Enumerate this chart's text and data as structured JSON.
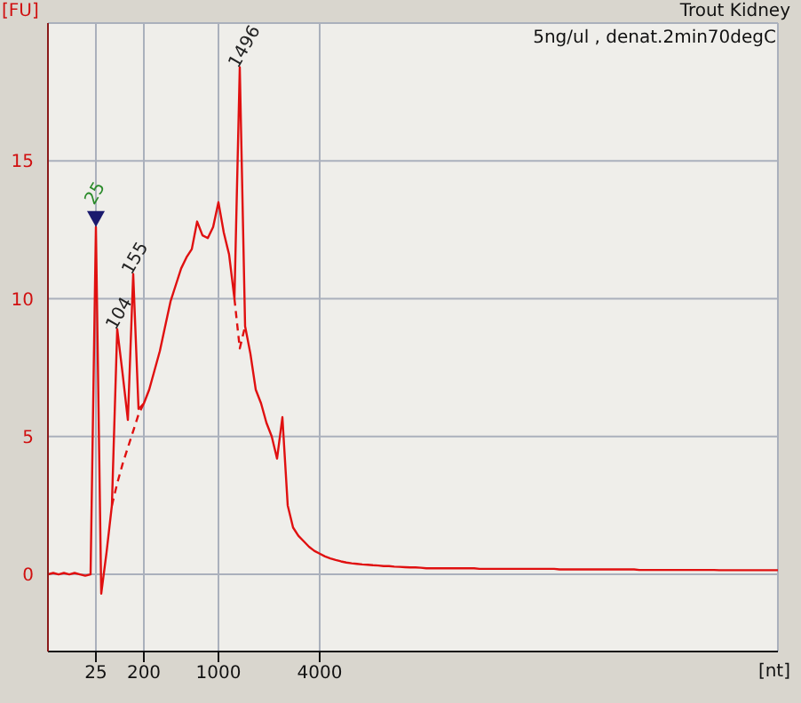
{
  "chart_data": {
    "type": "line",
    "title": "Trout Kidney",
    "subtitle": "5ng/ul , denat.2min70degC",
    "xlabel": "[nt]",
    "ylabel": "[FU]",
    "categories": [
      null,
      null,
      null,
      null,
      null,
      null,
      null,
      null,
      null,
      "25",
      null,
      null,
      null,
      null,
      null,
      null,
      null,
      null,
      "200",
      null,
      null,
      null,
      null,
      null,
      null,
      null,
      null,
      null,
      null,
      null,
      null,
      null,
      "1000",
      null,
      null,
      null,
      null,
      null,
      null,
      null,
      null,
      null,
      null,
      null,
      null,
      null,
      null,
      null,
      null,
      null,
      null,
      "4000",
      null,
      null,
      null,
      null,
      null,
      null,
      null,
      null,
      null,
      null,
      null,
      null,
      null,
      null,
      null,
      null,
      null,
      null,
      null,
      null,
      null,
      null,
      null,
      null,
      null,
      null,
      null,
      null,
      null,
      null,
      null,
      null,
      null,
      null,
      null,
      null,
      null,
      null,
      null,
      null,
      null,
      null,
      null,
      null,
      null,
      null,
      null,
      null,
      null,
      null,
      null,
      null,
      null,
      null,
      null,
      null,
      null,
      null,
      null,
      null,
      null,
      null,
      null,
      null,
      null,
      null,
      null,
      null,
      null,
      null,
      null,
      null,
      null,
      null,
      null,
      null,
      null,
      null,
      null,
      null,
      null,
      null,
      null,
      null,
      null,
      null
    ],
    "series": [
      {
        "color": "#e01010",
        "line_style": "solid",
        "values": [
          0,
          0.05,
          0,
          0.05,
          0,
          0.05,
          0,
          -0.05,
          0,
          12.6,
          -0.7,
          0.8,
          2.5,
          8.9,
          7.3,
          5.6,
          10.9,
          6.0,
          6.2,
          6.7,
          7.4,
          8.1,
          9.0,
          9.9,
          10.5,
          11.1,
          11.5,
          11.8,
          12.8,
          12.3,
          12.2,
          12.6,
          13.5,
          12.4,
          11.6,
          10.0,
          18.4,
          9.0,
          8.0,
          6.7,
          6.2,
          5.5,
          5.0,
          4.2,
          5.7,
          2.5,
          1.7,
          1.4,
          1.2,
          1.0,
          0.85,
          0.75,
          0.65,
          0.58,
          0.52,
          0.47,
          0.43,
          0.4,
          0.38,
          0.36,
          0.35,
          0.33,
          0.32,
          0.3,
          0.3,
          0.28,
          0.27,
          0.26,
          0.25,
          0.25,
          0.24,
          0.22,
          0.22,
          0.22,
          0.22,
          0.22,
          0.22,
          0.22,
          0.22,
          0.22,
          0.22,
          0.2,
          0.2,
          0.2,
          0.2,
          0.2,
          0.2,
          0.2,
          0.2,
          0.2,
          0.2,
          0.2,
          0.2,
          0.2,
          0.2,
          0.2,
          0.18,
          0.18,
          0.18,
          0.18,
          0.18,
          0.18,
          0.18,
          0.18,
          0.18,
          0.18,
          0.18,
          0.18,
          0.18,
          0.18,
          0.18,
          0.16,
          0.16,
          0.16,
          0.16,
          0.16,
          0.16,
          0.16,
          0.16,
          0.16,
          0.16,
          0.16,
          0.16,
          0.16,
          0.16,
          0.16,
          0.15,
          0.15,
          0.15,
          0.15,
          0.15,
          0.15,
          0.15,
          0.15,
          0.15,
          0.15,
          0.15,
          0.15
        ]
      },
      {
        "color": "#e01010",
        "line_style": "dashed",
        "values": [
          null,
          null,
          null,
          null,
          null,
          null,
          null,
          null,
          null,
          null,
          null,
          null,
          2.5,
          3.3,
          4.0,
          4.6,
          5.2,
          5.8,
          6.2,
          null,
          null,
          null,
          null,
          null,
          null,
          null,
          null,
          null,
          null,
          null,
          null,
          null,
          null,
          null,
          null,
          10.0,
          8.2,
          9.0,
          null,
          null,
          null,
          null,
          null,
          null,
          null,
          null,
          null,
          null,
          null,
          null,
          null,
          null,
          null,
          null,
          null,
          null,
          null,
          null,
          null,
          null,
          null,
          null,
          null,
          null,
          null,
          null,
          null,
          null,
          null,
          null,
          null,
          null,
          null,
          null,
          null,
          null,
          null,
          null,
          null,
          null,
          null,
          null,
          null,
          null,
          null,
          null,
          null,
          null,
          null,
          null,
          null,
          null,
          null,
          null,
          null,
          null,
          null,
          null,
          null,
          null,
          null,
          null,
          null,
          null,
          null,
          null,
          null,
          null,
          null,
          null,
          null,
          null,
          null,
          null,
          null,
          null,
          null,
          null,
          null,
          null,
          null,
          null,
          null,
          null,
          null,
          null,
          null,
          null,
          null,
          null,
          null,
          null,
          null,
          null,
          null,
          null,
          null,
          null
        ]
      }
    ],
    "annotations": [
      {
        "text": "25",
        "y": 12.6
      },
      {
        "text": "104",
        "y": 8.9
      },
      {
        "text": "155",
        "y": 10.9
      },
      {
        "text": "1496",
        "y": 18.4
      }
    ],
    "ylim": [
      -2.8,
      20
    ],
    "yticks": [
      0,
      5,
      10,
      15
    ],
    "grid": true
  }
}
